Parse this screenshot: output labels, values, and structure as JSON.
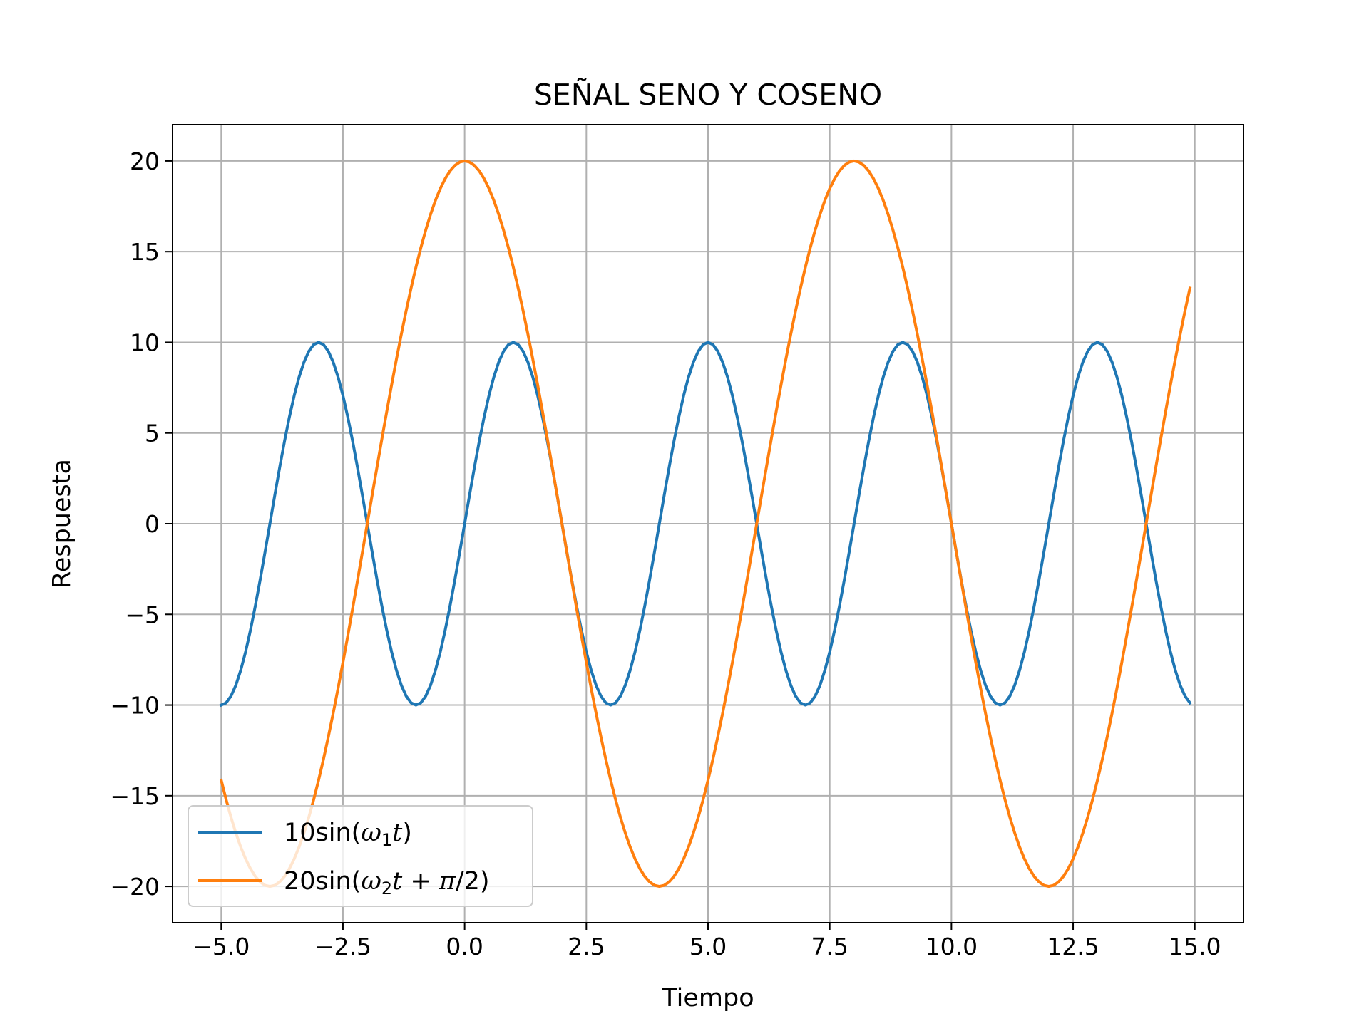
{
  "chart_data": {
    "type": "line",
    "title": "SEÑAL SENO  Y COSENO",
    "xlabel": "Tiempo",
    "ylabel": "Respuesta",
    "xlim": [
      -6,
      16
    ],
    "ylim": [
      -22,
      22
    ],
    "grid": true,
    "legend_position": "lower-left",
    "x_ticks": [
      -5,
      -2.5,
      0,
      2.5,
      5,
      7.5,
      10,
      12.5,
      15
    ],
    "x_tick_labels": [
      "−5.0",
      "−2.5",
      "0.0",
      "2.5",
      "5.0",
      "7.5",
      "10.0",
      "12.5",
      "15.0"
    ],
    "y_ticks": [
      20,
      15,
      10,
      5,
      0,
      -5,
      -10,
      -15,
      -20
    ],
    "y_tick_labels": [
      "20",
      "15",
      "10",
      "5",
      "0",
      "−5",
      "−10",
      "−15",
      "−20"
    ],
    "x_range": [
      -5,
      14.9
    ],
    "x_step": 0.1,
    "series": [
      {
        "name": "10sin(ω₁t)",
        "color": "#1f77b4",
        "formula": "10*sin((pi/2)*t)",
        "amplitude": 10,
        "angular_frequency": 1.5708,
        "phase": 0
      },
      {
        "name": "20sin(ω₂t + π/2)",
        "color": "#ff7f0e",
        "formula": "20*sin((pi/4)*t + pi/2)",
        "amplitude": 20,
        "angular_frequency": 0.7854,
        "phase": 1.5708
      }
    ]
  }
}
